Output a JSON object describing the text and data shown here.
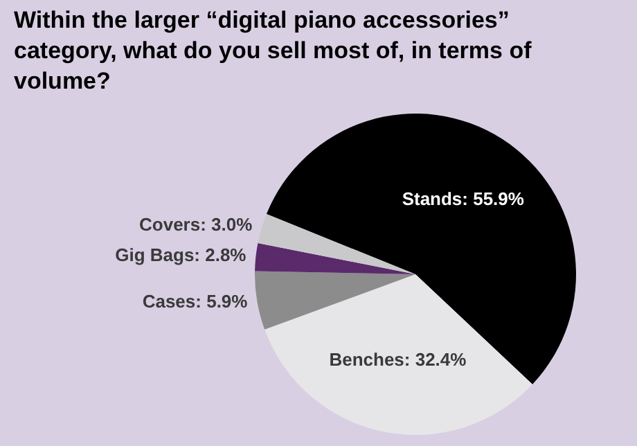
{
  "chart_data": {
    "type": "pie",
    "title": "Within the larger “digital piano accessories” category, what do you sell most of, in terms of volume?",
    "categories": [
      "Stands",
      "Benches",
      "Cases",
      "Gig Bags",
      "Covers"
    ],
    "values": [
      55.9,
      32.4,
      5.9,
      2.8,
      3.0
    ],
    "value_labels": [
      "55.9%",
      "32.4%",
      "5.9%",
      "2.8%",
      "3.0%"
    ],
    "colors": [
      "#000000",
      "#e6e6e8",
      "#8c8c8c",
      "#5b2a6b",
      "#c9c9cb"
    ],
    "legend": false
  }
}
